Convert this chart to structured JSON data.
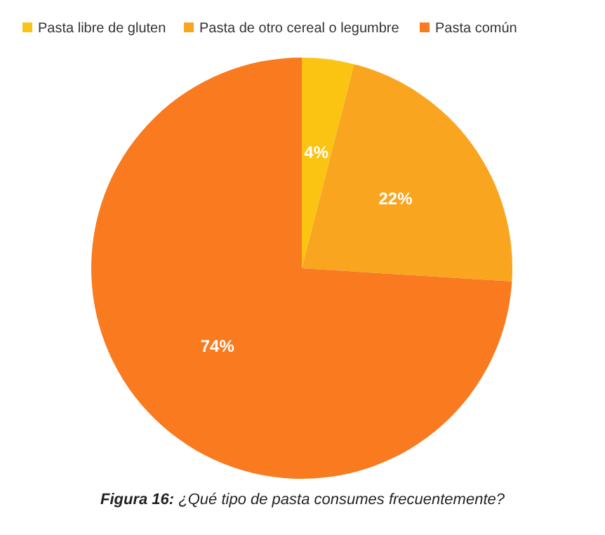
{
  "chart_data": {
    "type": "pie",
    "categories": [
      "Pasta libre de gluten",
      "Pasta de otro cereal o legumbre",
      "Pasta común"
    ],
    "values": [
      4,
      22,
      74
    ],
    "colors": [
      "#fbc412",
      "#f9a51f",
      "#f97a1f"
    ],
    "value_labels": [
      "4%",
      "22%",
      "74%"
    ],
    "legend": "top",
    "annotations": [
      "Figura 16: ¿Qué tipo de pasta consumes frecuentemente?"
    ]
  }
}
